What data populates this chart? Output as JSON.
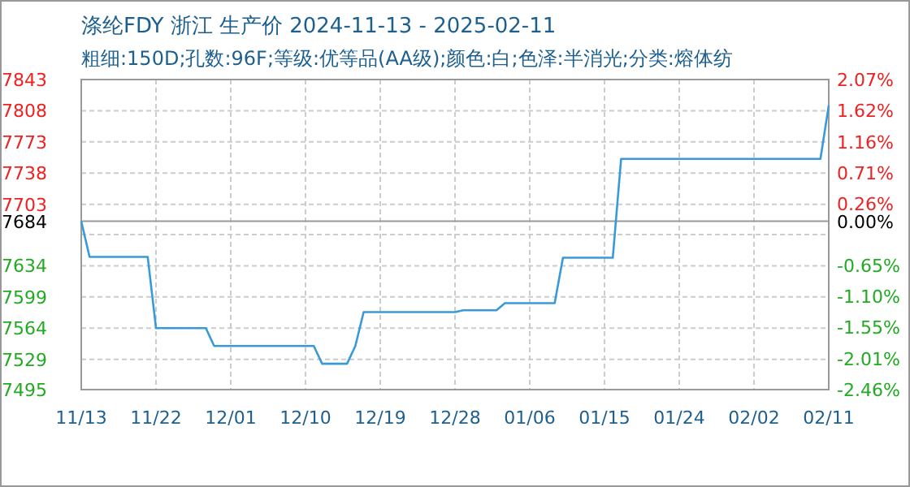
{
  "chart_data": {
    "type": "line",
    "title": "涤纶FDY 浙江 生产价 2024-11-13 - 2025-02-11",
    "subtitle": "粗细:150D;孔数:96F;等级:优等品(AA级);颜色:白;色泽:半消光;分类:熔体纺",
    "series": [
      {
        "color": "#3a9ad9",
        "x": [
          "2024-11-13",
          "2024-11-14",
          "2024-11-21",
          "2024-11-22",
          "2024-11-28",
          "2024-11-29",
          "2024-12-11",
          "2024-12-12",
          "2024-12-15",
          "2024-12-16",
          "2024-12-17",
          "2024-12-28",
          "2024-12-29",
          "2025-01-02",
          "2025-01-03",
          "2025-01-09",
          "2025-01-10",
          "2025-01-16",
          "2025-01-17",
          "2025-02-10",
          "2025-02-11"
        ],
        "values": [
          7684,
          7644,
          7644,
          7564,
          7564,
          7544,
          7544,
          7524,
          7524,
          7544,
          7582,
          7582,
          7584,
          7584,
          7592,
          7592,
          7643,
          7643,
          7754,
          7754,
          7814
        ]
      }
    ],
    "xlim": [
      "2024-11-13",
      "2025-02-11"
    ],
    "xticks": [
      {
        "value": "2024-11-13",
        "label": "11/13"
      },
      {
        "value": "2024-11-22",
        "label": "11/22"
      },
      {
        "value": "2024-12-01",
        "label": "12/01"
      },
      {
        "value": "2024-12-10",
        "label": "12/10"
      },
      {
        "value": "2024-12-19",
        "label": "12/19"
      },
      {
        "value": "2024-12-28",
        "label": "12/28"
      },
      {
        "value": "2025-01-06",
        "label": "01/06"
      },
      {
        "value": "2025-01-15",
        "label": "01/15"
      },
      {
        "value": "2025-01-24",
        "label": "01/24"
      },
      {
        "value": "2025-02-02",
        "label": "02/02"
      },
      {
        "value": "2025-02-11",
        "label": "02/11"
      }
    ],
    "ylim": [
      7495,
      7843
    ],
    "yticks": [
      7495,
      7529,
      7564,
      7599,
      7634,
      {
        "value": 7669,
        "label": null
      },
      7703,
      7738,
      7773,
      7808,
      7843
    ],
    "y2lim": [
      -2.46,
      2.07
    ],
    "y2ticks": [
      {
        "value": -2.46,
        "label": "-2.46%"
      },
      {
        "value": -2.01,
        "label": "-2.01%"
      },
      {
        "value": -1.55,
        "label": "-1.55%"
      },
      {
        "value": -1.1,
        "label": "-1.10%"
      },
      {
        "value": -0.65,
        "label": "-0.65%"
      },
      {
        "value": -0.2,
        "label": null
      },
      {
        "value": 0,
        "label": "0.00%"
      },
      {
        "value": 0.26,
        "label": "0.26%"
      },
      {
        "value": 0.71,
        "label": "0.71%"
      },
      {
        "value": 1.16,
        "label": "1.16%"
      },
      {
        "value": 1.62,
        "label": "1.62%"
      },
      {
        "value": 2.07,
        "label": "2.07%"
      }
    ],
    "ref_lines": [
      {
        "axis": "y",
        "value": 7684,
        "label": "7684",
        "color": "#999999"
      }
    ],
    "grid": true,
    "marker": "none",
    "line_style": "solid"
  }
}
